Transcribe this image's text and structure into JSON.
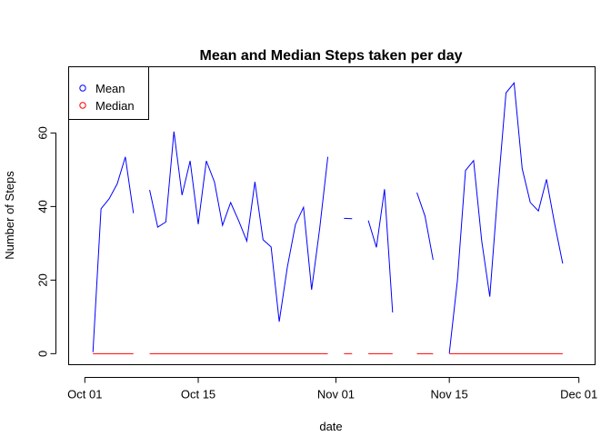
{
  "chart_data": {
    "type": "line",
    "title": "Mean and Median Steps taken per day",
    "xlabel": "date",
    "ylabel": "Number of Steps",
    "x_ticks": [
      {
        "date": "2012-10-01",
        "label": "Oct 01"
      },
      {
        "date": "2012-10-15",
        "label": "Oct 15"
      },
      {
        "date": "2012-11-01",
        "label": "Nov 01"
      },
      {
        "date": "2012-11-15",
        "label": "Nov 15"
      },
      {
        "date": "2012-12-01",
        "label": "Dec 01"
      }
    ],
    "y_ticks": [
      0,
      20,
      40,
      60
    ],
    "xlim": [
      "2012-09-29",
      "2012-12-03"
    ],
    "ylim": [
      -3,
      78
    ],
    "grid": false,
    "legend_position": "top-left",
    "x": [
      "2012-10-01",
      "2012-10-02",
      "2012-10-03",
      "2012-10-04",
      "2012-10-05",
      "2012-10-06",
      "2012-10-07",
      "2012-10-08",
      "2012-10-09",
      "2012-10-10",
      "2012-10-11",
      "2012-10-12",
      "2012-10-13",
      "2012-10-14",
      "2012-10-15",
      "2012-10-16",
      "2012-10-17",
      "2012-10-18",
      "2012-10-19",
      "2012-10-20",
      "2012-10-21",
      "2012-10-22",
      "2012-10-23",
      "2012-10-24",
      "2012-10-25",
      "2012-10-26",
      "2012-10-27",
      "2012-10-28",
      "2012-10-29",
      "2012-10-30",
      "2012-10-31",
      "2012-11-01",
      "2012-11-02",
      "2012-11-03",
      "2012-11-04",
      "2012-11-05",
      "2012-11-06",
      "2012-11-07",
      "2012-11-08",
      "2012-11-09",
      "2012-11-10",
      "2012-11-11",
      "2012-11-12",
      "2012-11-13",
      "2012-11-14",
      "2012-11-15",
      "2012-11-16",
      "2012-11-17",
      "2012-11-18",
      "2012-11-19",
      "2012-11-20",
      "2012-11-21",
      "2012-11-22",
      "2012-11-23",
      "2012-11-24",
      "2012-11-25",
      "2012-11-26",
      "2012-11-27",
      "2012-11-28",
      "2012-11-29",
      "2012-11-30"
    ],
    "series": [
      {
        "name": "Mean",
        "color": "#0000ff",
        "values": [
          null,
          0.4,
          39.4,
          42.1,
          46.2,
          53.5,
          38.2,
          null,
          44.5,
          34.4,
          35.8,
          60.4,
          43.1,
          52.4,
          35.2,
          52.4,
          46.7,
          34.9,
          41.1,
          36.1,
          30.6,
          46.7,
          31.0,
          29.0,
          8.7,
          23.5,
          35.1,
          39.8,
          17.4,
          34.1,
          53.5,
          null,
          36.8,
          36.7,
          null,
          36.2,
          28.9,
          44.7,
          11.2,
          null,
          null,
          43.8,
          37.4,
          25.5,
          null,
          0.1,
          19.9,
          49.8,
          52.5,
          30.7,
          15.5,
          44.4,
          70.9,
          73.6,
          50.3,
          41.1,
          38.8,
          47.4,
          35.4,
          24.5,
          null
        ]
      },
      {
        "name": "Median",
        "color": "#ff0000",
        "values": [
          null,
          0,
          0,
          0,
          0,
          0,
          0,
          null,
          0,
          0,
          0,
          0,
          0,
          0,
          0,
          0,
          0,
          0,
          0,
          0,
          0,
          0,
          0,
          0,
          0,
          0,
          0,
          0,
          0,
          0,
          0,
          null,
          0,
          0,
          null,
          0,
          0,
          0,
          0,
          null,
          null,
          0,
          0,
          0,
          null,
          0,
          0,
          0,
          0,
          0,
          0,
          0,
          0,
          0,
          0,
          0,
          0,
          0,
          0,
          0,
          null
        ]
      }
    ]
  }
}
